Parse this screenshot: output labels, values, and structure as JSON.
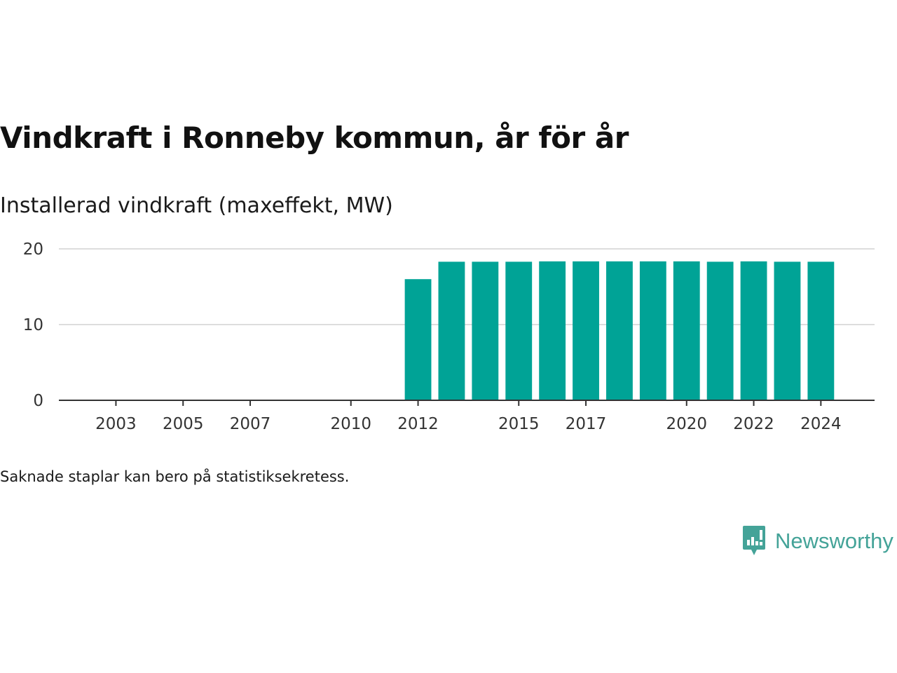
{
  "title": "Vindkraft i Ronneby kommun, år för år",
  "subtitle": "Installerad vindkraft (maxeffekt, MW)",
  "footnote": "Saknade staplar kan bero på statistiksekretess.",
  "brand": {
    "name": "Newsworthy",
    "icon": "newsworthy-logo-icon",
    "color": "#44a398"
  },
  "colors": {
    "bar": "#00a396",
    "grid": "#dddddd",
    "axis": "#333333"
  },
  "chart_data": {
    "type": "bar",
    "x": [
      2012,
      2013,
      2014,
      2015,
      2016,
      2017,
      2018,
      2019,
      2020,
      2021,
      2022,
      2023,
      2024
    ],
    "values": [
      16.0,
      18.3,
      18.3,
      18.3,
      18.35,
      18.35,
      18.35,
      18.35,
      18.35,
      18.3,
      18.35,
      18.3,
      18.3
    ],
    "xlim": [
      2001.3,
      2025.6
    ],
    "ylim": [
      0,
      20
    ],
    "yticks": [
      0,
      10,
      20
    ],
    "xticks": [
      "2003",
      "2005",
      "2007",
      "2010",
      "2012",
      "2015",
      "2017",
      "2020",
      "2022",
      "2024"
    ],
    "grid": true,
    "legend": "none"
  }
}
